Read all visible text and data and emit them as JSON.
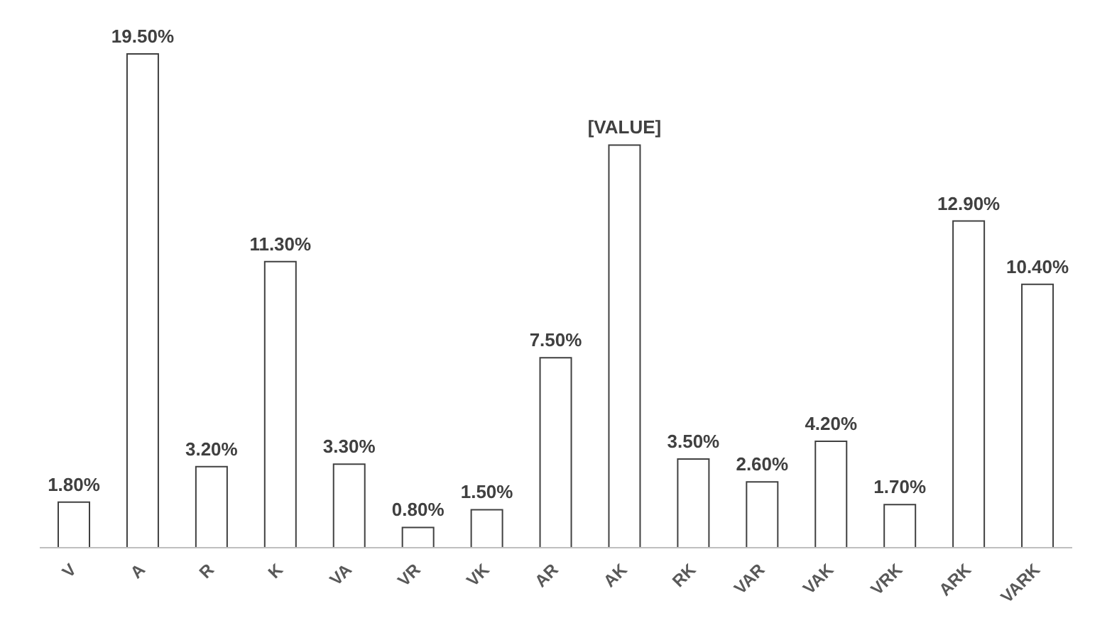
{
  "chart_data": {
    "type": "bar",
    "categories": [
      "V",
      "A",
      "R",
      "K",
      "VA",
      "VR",
      "VK",
      "AR",
      "AK",
      "RK",
      "VAR",
      "VAK",
      "VRK",
      "ARK",
      "VARK"
    ],
    "values": [
      1.8,
      19.5,
      3.2,
      11.3,
      3.3,
      0.8,
      1.5,
      7.5,
      15.9,
      3.5,
      2.6,
      4.2,
      1.7,
      12.9,
      10.4
    ],
    "value_labels": [
      "1.80%",
      "19.50%",
      "3.20%",
      "11.30%",
      "3.30%",
      "0.80%",
      "1.50%",
      "7.50%",
      "[VALUE]",
      "3.50%",
      "2.60%",
      "4.20%",
      "1.70%",
      "12.90%",
      "10.40%"
    ],
    "color": "#ffffff"
  }
}
